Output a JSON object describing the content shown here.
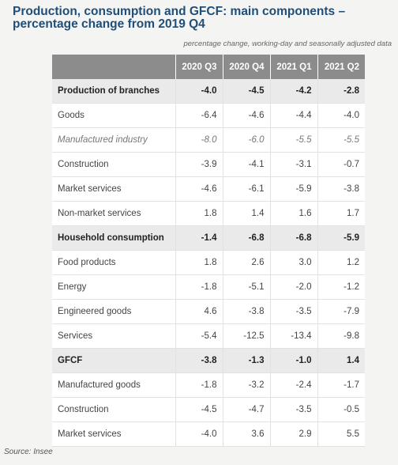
{
  "title": "Production, consumption and GFCF: main components – percentage change from 2019 Q4",
  "subtitle": "percentage change, working-day and seasonally adjusted data",
  "columns": [
    "",
    "2020 Q3",
    "2020 Q4",
    "2021 Q1",
    "2021 Q2"
  ],
  "rows": [
    {
      "label": "Production of branches",
      "style": "bold",
      "values": [
        "-4.0",
        "-4.5",
        "-4.2",
        "-2.8"
      ]
    },
    {
      "label": "Goods",
      "style": "normal",
      "values": [
        "-6.4",
        "-4.6",
        "-4.4",
        "-4.0"
      ]
    },
    {
      "label": "Manufactured industry",
      "style": "italic",
      "values": [
        "-8.0",
        "-6.0",
        "-5.5",
        "-5.5"
      ]
    },
    {
      "label": "Construction",
      "style": "normal",
      "values": [
        "-3.9",
        "-4.1",
        "-3.1",
        "-0.7"
      ]
    },
    {
      "label": "Market services",
      "style": "normal",
      "values": [
        "-4.6",
        "-6.1",
        "-5.9",
        "-3.8"
      ]
    },
    {
      "label": "Non-market services",
      "style": "normal",
      "values": [
        "1.8",
        "1.4",
        "1.6",
        "1.7"
      ]
    },
    {
      "label": "Household consumption",
      "style": "bold",
      "values": [
        "-1.4",
        "-6.8",
        "-6.8",
        "-5.9"
      ]
    },
    {
      "label": "Food products",
      "style": "normal",
      "values": [
        "1.8",
        "2.6",
        "3.0",
        "1.2"
      ]
    },
    {
      "label": "Energy",
      "style": "normal",
      "values": [
        "-1.8",
        "-5.1",
        "-2.0",
        "-1.2"
      ]
    },
    {
      "label": "Engineered goods",
      "style": "normal",
      "values": [
        "4.6",
        "-3.8",
        "-3.5",
        "-7.9"
      ]
    },
    {
      "label": "Services",
      "style": "normal",
      "values": [
        "-5.4",
        "-12.5",
        "-13.4",
        "-9.8"
      ]
    },
    {
      "label": "GFCF",
      "style": "bold",
      "values": [
        "-3.8",
        "-1.3",
        "-1.0",
        "1.4"
      ]
    },
    {
      "label": "Manufactured goods",
      "style": "normal",
      "values": [
        "-1.8",
        "-3.2",
        "-2.4",
        "-1.7"
      ]
    },
    {
      "label": "Construction",
      "style": "normal",
      "values": [
        "-4.5",
        "-4.7",
        "-3.5",
        "-0.5"
      ]
    },
    {
      "label": "Market services",
      "style": "normal",
      "values": [
        "-4.0",
        "3.6",
        "2.9",
        "5.5"
      ]
    }
  ],
  "source": "Source: Insee"
}
